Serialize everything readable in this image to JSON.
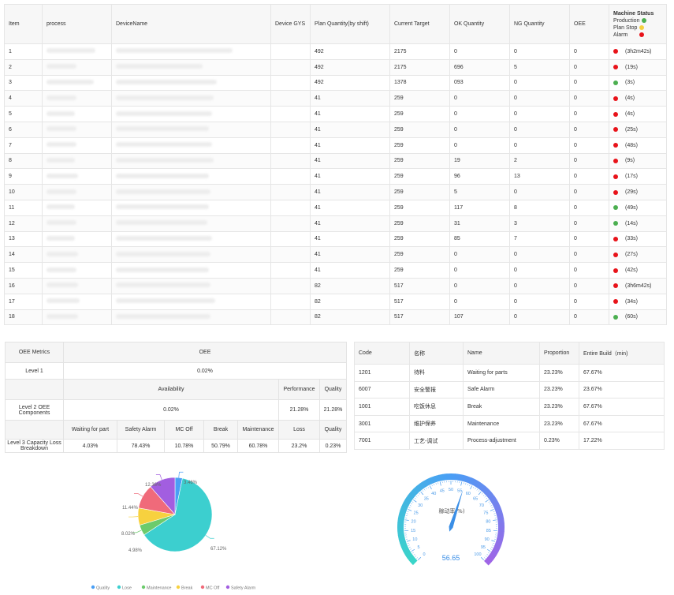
{
  "table": {
    "headers": [
      "Item",
      "process",
      "DeviceName",
      "Device GYS",
      "Plan Quantity(by shift)",
      "Current Target",
      "OK Quantity",
      "NG Quantity",
      "OEE"
    ],
    "status_header": {
      "title": "Machine Status",
      "legend": [
        {
          "label": "Production",
          "color": "#4caf50"
        },
        {
          "label": "Plan Stop",
          "color": "#f4d03f"
        },
        {
          "label": "Alarm",
          "color": "#e8131a"
        }
      ]
    },
    "rows": [
      {
        "item": "1",
        "plan": "492",
        "target": "2175",
        "ok": "0",
        "ng": "0",
        "oee": "0",
        "status_color": "#e8131a",
        "duration": "(3h2m42s)"
      },
      {
        "item": "2",
        "plan": "492",
        "target": "2175",
        "ok": "696",
        "ng": "5",
        "oee": "0",
        "status_color": "#e8131a",
        "duration": "(19s)"
      },
      {
        "item": "3",
        "plan": "492",
        "target": "1378",
        "ok": "093",
        "ng": "0",
        "oee": "0",
        "status_color": "#4caf50",
        "duration": "(3s)"
      },
      {
        "item": "4",
        "plan": "41",
        "target": "259",
        "ok": "0",
        "ng": "0",
        "oee": "0",
        "status_color": "#e8131a",
        "duration": "(4s)"
      },
      {
        "item": "5",
        "plan": "41",
        "target": "259",
        "ok": "0",
        "ng": "0",
        "oee": "0",
        "status_color": "#e8131a",
        "duration": "(4s)"
      },
      {
        "item": "6",
        "plan": "41",
        "target": "259",
        "ok": "0",
        "ng": "0",
        "oee": "0",
        "status_color": "#e8131a",
        "duration": "(25s)"
      },
      {
        "item": "7",
        "plan": "41",
        "target": "259",
        "ok": "0",
        "ng": "0",
        "oee": "0",
        "status_color": "#e8131a",
        "duration": "(48s)"
      },
      {
        "item": "8",
        "plan": "41",
        "target": "259",
        "ok": "19",
        "ng": "2",
        "oee": "0",
        "status_color": "#e8131a",
        "duration": "(9s)"
      },
      {
        "item": "9",
        "plan": "41",
        "target": "259",
        "ok": "96",
        "ng": "13",
        "oee": "0",
        "status_color": "#e8131a",
        "duration": "(17s)"
      },
      {
        "item": "10",
        "plan": "41",
        "target": "259",
        "ok": "5",
        "ng": "0",
        "oee": "0",
        "status_color": "#e8131a",
        "duration": "(29s)"
      },
      {
        "item": "11",
        "plan": "41",
        "target": "259",
        "ok": "117",
        "ng": "8",
        "oee": "0",
        "status_color": "#4caf50",
        "duration": "(49s)"
      },
      {
        "item": "12",
        "plan": "41",
        "target": "259",
        "ok": "31",
        "ng": "3",
        "oee": "0",
        "status_color": "#4caf50",
        "duration": "(14s)"
      },
      {
        "item": "13",
        "plan": "41",
        "target": "259",
        "ok": "85",
        "ng": "7",
        "oee": "0",
        "status_color": "#e8131a",
        "duration": "(33s)"
      },
      {
        "item": "14",
        "plan": "41",
        "target": "259",
        "ok": "0",
        "ng": "0",
        "oee": "0",
        "status_color": "#e8131a",
        "duration": "(27s)"
      },
      {
        "item": "15",
        "plan": "41",
        "target": "259",
        "ok": "0",
        "ng": "0",
        "oee": "0",
        "status_color": "#e8131a",
        "duration": "(42s)"
      },
      {
        "item": "16",
        "plan": "82",
        "target": "517",
        "ok": "0",
        "ng": "0",
        "oee": "0",
        "status_color": "#e8131a",
        "duration": "(3h6m42s)"
      },
      {
        "item": "17",
        "plan": "82",
        "target": "517",
        "ok": "0",
        "ng": "0",
        "oee": "0",
        "status_color": "#e8131a",
        "duration": "(34s)"
      },
      {
        "item": "18",
        "plan": "82",
        "target": "517",
        "ok": "107",
        "ng": "0",
        "oee": "0",
        "status_color": "#4caf50",
        "duration": "(60s)"
      }
    ]
  },
  "oee": {
    "metrics_label": "OEE Metrics",
    "oee_label": "OEE",
    "level1_label": "Level 1",
    "level1_value": "0.02%",
    "availability_label": "Availability",
    "performance_label": "Performance",
    "quality_label": "Quality",
    "level2_label": "Level 2 OEE Components",
    "availability_value": "0.02%",
    "performance_value": "21.28%",
    "quality_value": "21.28%",
    "level3_label": "Level 3 Capacity Loss Breakdown",
    "level3_headers": [
      "Waiting for part",
      "Safety Alarm",
      "MC Off",
      "Break",
      "Maintenance",
      "Loss",
      "Quality"
    ],
    "level3_values": [
      "4.03%",
      "78.43%",
      "10.78%",
      "50.79%",
      "60.78%",
      "23.2%",
      "0.23%"
    ]
  },
  "codes": {
    "headers": [
      "Code",
      "名称",
      "Name",
      "Proportion",
      "Entire Build（min)"
    ],
    "rows": [
      [
        "1201",
        "待料",
        "Waiting for parts",
        "23.23%",
        "67.67%"
      ],
      [
        "6007",
        "安全警报",
        "Safe Alarm",
        "23.23%",
        "23.67%"
      ],
      [
        "1001",
        "吃饭休息",
        "Break",
        "23.23%",
        "67.67%"
      ],
      [
        "3001",
        "维护保养",
        "Maintenance",
        "23.23%",
        "67.67%"
      ],
      [
        "7001",
        "工艺-调试",
        "Process-adjustment",
        "0.23%",
        "17.22%"
      ]
    ]
  },
  "chart_data": {
    "type": "pie",
    "series": [
      {
        "name": "Quality",
        "value": 3.46,
        "label": "3.46%",
        "color": "#4a9ff5"
      },
      {
        "name": "Lose",
        "value": 67.12,
        "label": "67.12%",
        "color": "#3ccfcf"
      },
      {
        "name": "Maintenance",
        "value": 4.98,
        "label": "4.98%",
        "color": "#6ccb6c"
      },
      {
        "name": "Break",
        "value": 8.02,
        "label": "8.02%",
        "color": "#f7d13f"
      },
      {
        "name": "MC Off",
        "value": 11.44,
        "label": "11.44%",
        "color": "#f06a7a"
      },
      {
        "name": "Safety Alarm",
        "value": 12.36,
        "label": "12.36%",
        "color": "#a25ee0"
      }
    ],
    "legend_placement": "bottom"
  },
  "gauge": {
    "title": "稼动率(%)",
    "value": 56.65,
    "value_text": "56.65",
    "min": 0,
    "max": 100,
    "ticks": [
      "0",
      "5",
      "10",
      "15",
      "20",
      "25",
      "30",
      "35",
      "40",
      "45",
      "50",
      "55",
      "60",
      "65",
      "70",
      "75",
      "80",
      "85",
      "90",
      "95",
      "100"
    ]
  }
}
